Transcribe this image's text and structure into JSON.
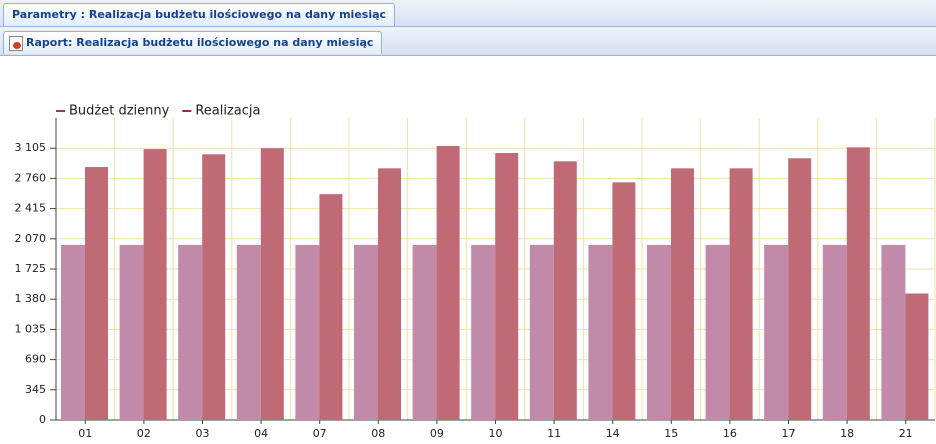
{
  "tabs": [
    "Parametry : Realizacja budżetu ilościowego na dany miesiąc",
    "Raport: Realizacja budżetu ilościowego na dany miesiąc"
  ],
  "chart_data": {
    "type": "bar",
    "categories": [
      "01",
      "02",
      "03",
      "04",
      "07",
      "08",
      "09",
      "10",
      "11",
      "14",
      "15",
      "16",
      "17",
      "18",
      "21"
    ],
    "series": [
      {
        "name": "Budżet dzienny",
        "color": "#c08aa8",
        "legend_color": "#8b3a73",
        "values": [
          2000,
          2000,
          2000,
          2000,
          2000,
          2000,
          2000,
          2000,
          2000,
          2000,
          2000,
          2000,
          2000,
          2000,
          2000
        ]
      },
      {
        "name": "Realizacja",
        "color": "#c06a76",
        "legend_color": "#a0283a",
        "values": [
          2890,
          3095,
          3035,
          3105,
          2580,
          2875,
          3130,
          3050,
          2955,
          2715,
          2875,
          2875,
          2990,
          3115,
          1445
        ]
      }
    ],
    "ylim": [
      0,
      3450
    ],
    "yticks": [
      0,
      345,
      690,
      {
        "value": 1035,
        "label": "1 035"
      },
      {
        "value": 1380,
        "label": "1 380"
      },
      {
        "value": 1725,
        "label": "1 725"
      },
      {
        "value": 2070,
        "label": "2 070"
      },
      {
        "value": 2415,
        "label": "2 415"
      },
      {
        "value": 2760,
        "label": "2 760"
      },
      {
        "value": 3105,
        "label": "3 105"
      }
    ],
    "grid": true,
    "legend": "top-left"
  }
}
